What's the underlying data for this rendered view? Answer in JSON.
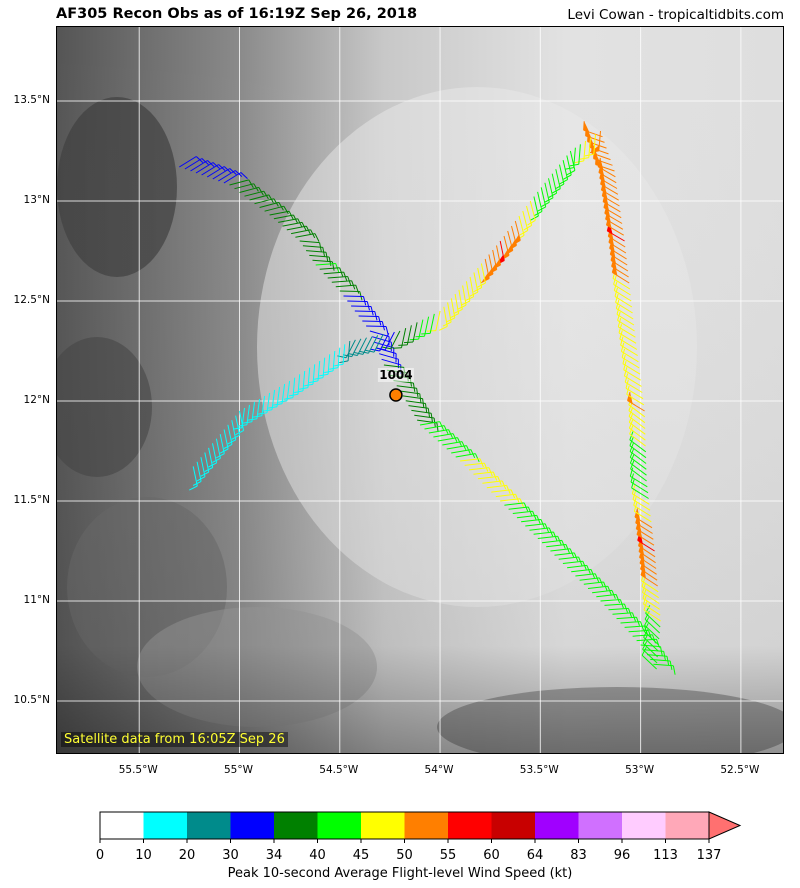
{
  "header": {
    "title": "AF305 Recon Obs as of 16:19Z Sep 26, 2018",
    "credit": "Levi Cowan - tropicaltidbits.com"
  },
  "map": {
    "satellite_note": "Satellite data from 16:05Z Sep 26",
    "lat_labels": [
      "13.5°N",
      "13°N",
      "12.5°N",
      "12°N",
      "11.5°N",
      "11°N",
      "10.5°N"
    ],
    "lon_labels": [
      "55.5°W",
      "55°W",
      "54.5°W",
      "54°W",
      "53.5°W",
      "53°W",
      "52.5°W"
    ],
    "pressure_label": "1004",
    "flight_track": [
      {
        "lon": -55.3,
        "lat": 13.17,
        "kt": 30
      },
      {
        "lon": -55.05,
        "lat": 13.08,
        "kt": 34
      },
      {
        "lon": -54.85,
        "lat": 12.93,
        "kt": 34
      },
      {
        "lon": -54.7,
        "lat": 12.8,
        "kt": 34
      },
      {
        "lon": -54.62,
        "lat": 12.68,
        "kt": 40
      },
      {
        "lon": -54.5,
        "lat": 12.55,
        "kt": 34
      },
      {
        "lon": -54.35,
        "lat": 12.35,
        "kt": 30
      },
      {
        "lon": -54.28,
        "lat": 12.18,
        "kt": 34
      },
      {
        "lon": -54.2,
        "lat": 12.05,
        "kt": 34
      },
      {
        "lon": -54.1,
        "lat": 11.88,
        "kt": 40
      },
      {
        "lon": -53.9,
        "lat": 11.7,
        "kt": 45
      },
      {
        "lon": -53.7,
        "lat": 11.5,
        "kt": 45
      },
      {
        "lon": -53.45,
        "lat": 11.25,
        "kt": 40
      },
      {
        "lon": -53.2,
        "lat": 11.0,
        "kt": 40
      },
      {
        "lon": -53.0,
        "lat": 10.78,
        "kt": 40
      },
      {
        "lon": -52.92,
        "lat": 10.66,
        "kt": 40
      },
      {
        "lon": -52.9,
        "lat": 10.9,
        "kt": 45
      },
      {
        "lon": -52.93,
        "lat": 11.25,
        "kt": 55
      },
      {
        "lon": -52.97,
        "lat": 11.6,
        "kt": 40
      },
      {
        "lon": -52.98,
        "lat": 11.95,
        "kt": 50
      },
      {
        "lon": -53.03,
        "lat": 12.35,
        "kt": 45
      },
      {
        "lon": -53.08,
        "lat": 12.8,
        "kt": 55
      },
      {
        "lon": -53.13,
        "lat": 13.15,
        "kt": 50
      },
      {
        "lon": -53.2,
        "lat": 13.35,
        "kt": 50
      },
      {
        "lon": -53.35,
        "lat": 13.25,
        "kt": 40
      },
      {
        "lon": -53.55,
        "lat": 13.0,
        "kt": 45
      },
      {
        "lon": -53.7,
        "lat": 12.8,
        "kt": 55
      },
      {
        "lon": -53.85,
        "lat": 12.62,
        "kt": 45
      },
      {
        "lon": -54.0,
        "lat": 12.45,
        "kt": 45
      },
      {
        "lon": -54.2,
        "lat": 12.35,
        "kt": 34
      },
      {
        "lon": -54.45,
        "lat": 12.3,
        "kt": 20
      },
      {
        "lon": -54.75,
        "lat": 12.1,
        "kt": 10
      },
      {
        "lon": -55.0,
        "lat": 11.95,
        "kt": 10
      },
      {
        "lon": -55.25,
        "lat": 11.65,
        "kt": 10
      }
    ],
    "center_marker": {
      "lon": -54.22,
      "lat": 12.03,
      "pressure_mb": 1004,
      "color": "#ff7f00"
    }
  },
  "colorbar": {
    "title": "Peak 10-second Average Flight-level Wind Speed (kt)",
    "ticks": [
      "0",
      "10",
      "20",
      "30",
      "34",
      "40",
      "45",
      "50",
      "55",
      "60",
      "64",
      "83",
      "96",
      "113",
      "137"
    ],
    "colors": [
      "#ffffff",
      "#00ffff",
      "#008b8b",
      "#0000ff",
      "#008000",
      "#00ff00",
      "#ffff00",
      "#ff7f00",
      "#ff0000",
      "#c80000",
      "#a000ff",
      "#d070ff",
      "#ffccff",
      "#ffa8b8"
    ],
    "extend_color": "#ff7070"
  }
}
